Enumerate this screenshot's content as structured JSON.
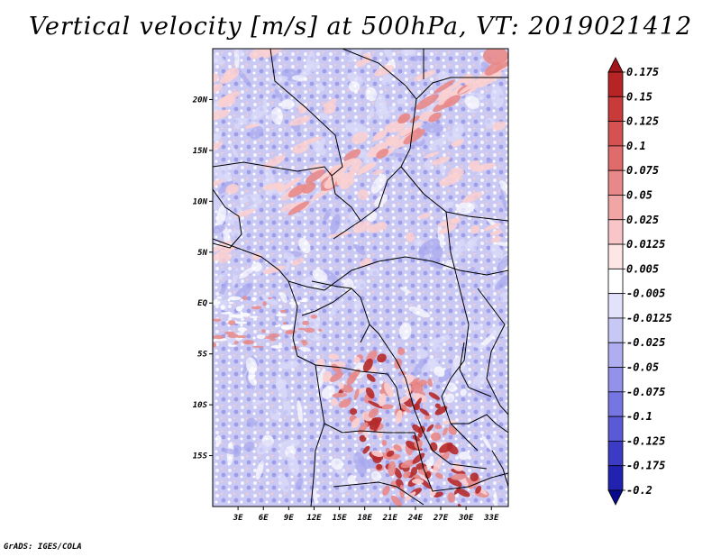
{
  "title": "Vertical velocity [m/s] at 500hPa, VT: 2019021412",
  "footer": "GrADS: IGES/COLA",
  "map": {
    "lat_range": [
      -20,
      25
    ],
    "lon_range": [
      0,
      35
    ],
    "lat_ticks": [
      {
        "value": 20,
        "label": "20N"
      },
      {
        "value": 15,
        "label": "15N"
      },
      {
        "value": 10,
        "label": "10N"
      },
      {
        "value": 5,
        "label": "5N"
      },
      {
        "value": 0,
        "label": "EQ"
      },
      {
        "value": -5,
        "label": "5S"
      },
      {
        "value": -10,
        "label": "10S"
      },
      {
        "value": -15,
        "label": "15S"
      }
    ],
    "lon_ticks": [
      {
        "value": 3,
        "label": "3E"
      },
      {
        "value": 6,
        "label": "6E"
      },
      {
        "value": 9,
        "label": "9E"
      },
      {
        "value": 12,
        "label": "12E"
      },
      {
        "value": 15,
        "label": "15E"
      },
      {
        "value": 18,
        "label": "18E"
      },
      {
        "value": 21,
        "label": "21E"
      },
      {
        "value": 24,
        "label": "24E"
      },
      {
        "value": 27,
        "label": "27E"
      },
      {
        "value": 30,
        "label": "30E"
      },
      {
        "value": 33,
        "label": "33E"
      }
    ]
  },
  "colorbar": {
    "levels": [
      "0.175",
      "0.15",
      "0.125",
      "0.1",
      "0.075",
      "0.05",
      "0.025",
      "0.0125",
      "0.005",
      "-0.005",
      "-0.0125",
      "-0.025",
      "-0.05",
      "-0.075",
      "-0.1",
      "-0.125",
      "-0.175",
      "-0.2"
    ],
    "colors": [
      "#a0161c",
      "#b72426",
      "#c93a3a",
      "#d65252",
      "#e06b6b",
      "#e98888",
      "#f1a5a5",
      "#f8c6c6",
      "#fde6e6",
      "#ffffff",
      "#e2e2fb",
      "#c8c8f6",
      "#aeaef0",
      "#9292ea",
      "#7676e2",
      "#5a5ad6",
      "#3b3bc6",
      "#2222b0",
      "#0a0a8c"
    ]
  },
  "palette": {
    "neg_light": "#dcdcfa",
    "neg_mid": "#a8a8ee",
    "pos_light": "#fbd0d0",
    "pos_mid": "#e88a8a",
    "pos_dark": "#b52a2a",
    "land_border": "#000000"
  }
}
